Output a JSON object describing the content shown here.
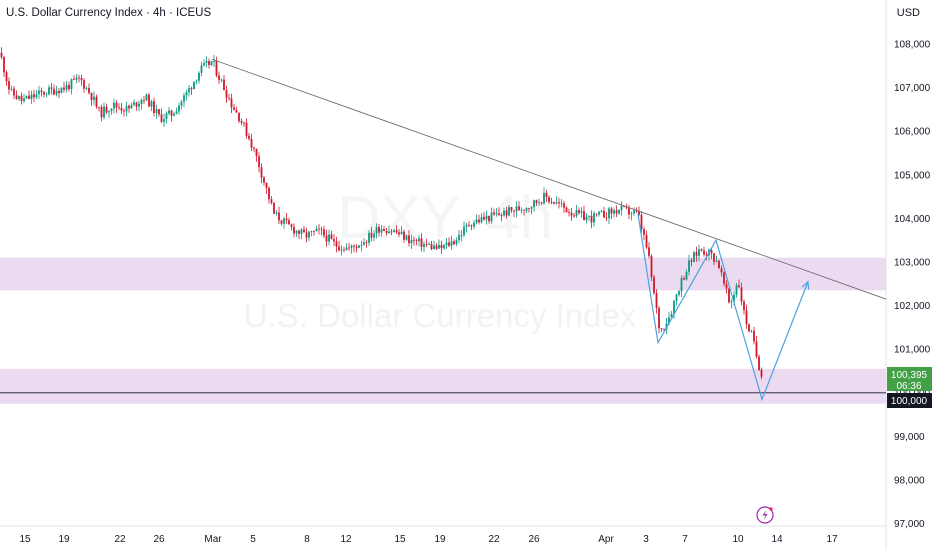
{
  "header": {
    "title": "U.S. Dollar Currency Index · 4h · ICEUS",
    "currency": "USD"
  },
  "watermark": {
    "symbol": "DXY, 4h",
    "name": "U.S. Dollar Currency Index"
  },
  "price_label": {
    "price": "100,395",
    "countdown": "06:36",
    "level": "100,000"
  },
  "colors": {
    "up": "#089981",
    "down": "#d2182c",
    "zone": "#e9d3ef",
    "trendline": "#6a6d78",
    "pattern": "#4ba3e0",
    "last_price": "#43a047"
  },
  "chart_data": {
    "type": "candlestick",
    "title": "U.S. Dollar Currency Index · 4h · ICEUS",
    "y_axis": {
      "ticks": [
        "108,000",
        "107,000",
        "106,000",
        "105,000",
        "104,000",
        "103,000",
        "102,000",
        "101,000",
        "100,000",
        "99,000",
        "98,000",
        "97,000"
      ],
      "range": [
        96.75,
        108.35
      ]
    },
    "x_axis": {
      "ticks": [
        "15",
        "19",
        "22",
        "26",
        "Mar",
        "5",
        "8",
        "12",
        "15",
        "19",
        "22",
        "26",
        "Apr",
        "3",
        "7",
        "10",
        "14",
        "17"
      ]
    },
    "price_path": [
      [
        0,
        107.8
      ],
      [
        10,
        106.9
      ],
      [
        22,
        106.7
      ],
      [
        45,
        106.9
      ],
      [
        65,
        107.0
      ],
      [
        80,
        107.2
      ],
      [
        92,
        106.8
      ],
      [
        100,
        106.4
      ],
      [
        112,
        106.6
      ],
      [
        128,
        106.5
      ],
      [
        145,
        106.8
      ],
      [
        160,
        106.3
      ],
      [
        172,
        106.4
      ],
      [
        185,
        106.8
      ],
      [
        200,
        107.4
      ],
      [
        212,
        107.6
      ],
      [
        222,
        107.1
      ],
      [
        232,
        106.6
      ],
      [
        240,
        106.3
      ],
      [
        250,
        105.8
      ],
      [
        258,
        105.3
      ],
      [
        266,
        104.7
      ],
      [
        274,
        104.1
      ],
      [
        290,
        103.8
      ],
      [
        305,
        103.6
      ],
      [
        320,
        103.7
      ],
      [
        335,
        103.4
      ],
      [
        350,
        103.3
      ],
      [
        365,
        103.5
      ],
      [
        380,
        103.8
      ],
      [
        395,
        103.7
      ],
      [
        410,
        103.5
      ],
      [
        425,
        103.4
      ],
      [
        440,
        103.3
      ],
      [
        455,
        103.5
      ],
      [
        470,
        103.9
      ],
      [
        485,
        104.0
      ],
      [
        500,
        104.1
      ],
      [
        515,
        104.2
      ],
      [
        530,
        104.3
      ],
      [
        545,
        104.5
      ],
      [
        560,
        104.3
      ],
      [
        575,
        104.1
      ],
      [
        590,
        104.0
      ],
      [
        605,
        104.1
      ],
      [
        620,
        104.2
      ],
      [
        638,
        104.1
      ],
      [
        648,
        103.2
      ],
      [
        655,
        102.1
      ],
      [
        660,
        101.4
      ],
      [
        670,
        101.8
      ],
      [
        680,
        102.5
      ],
      [
        690,
        103.0
      ],
      [
        700,
        103.3
      ],
      [
        710,
        103.2
      ],
      [
        718,
        103.0
      ],
      [
        725,
        102.4
      ],
      [
        730,
        102.0
      ],
      [
        738,
        102.6
      ],
      [
        745,
        101.7
      ],
      [
        752,
        101.3
      ],
      [
        758,
        100.7
      ],
      [
        763,
        100.35
      ]
    ],
    "zones": [
      {
        "from": 102.35,
        "to": 103.1
      },
      {
        "from": 99.75,
        "to": 100.55
      }
    ],
    "trendline": {
      "from": [
        212,
        107.65
      ],
      "to": [
        886,
        102.15
      ]
    },
    "horizontal_level": 100.0,
    "pattern_path": [
      [
        638,
        104.1
      ],
      [
        658,
        101.15
      ],
      [
        716,
        103.5
      ],
      [
        762,
        99.85
      ],
      [
        808,
        102.55
      ]
    ]
  }
}
